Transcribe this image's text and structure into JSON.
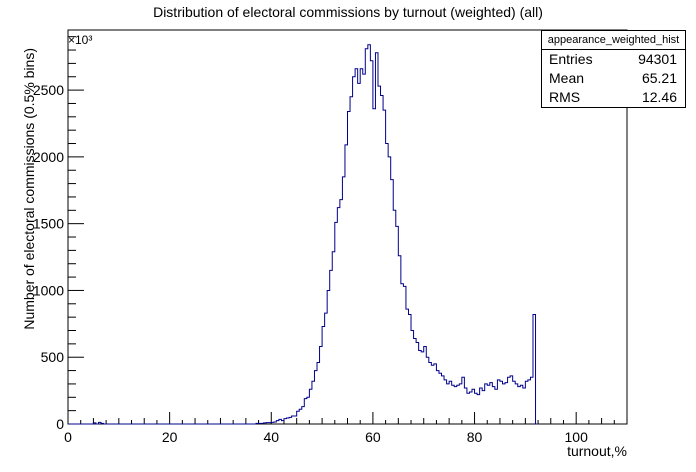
{
  "chart_data": {
    "type": "histogram",
    "title": "Distribution of electoral commissions by turnout (weighted) (all)",
    "xlabel": "turnout,%",
    "ylabel": "Number of electoral commissions (0.5% bins)",
    "y_exponent_label": "×10³",
    "xlim": [
      0,
      110
    ],
    "ylim": [
      0,
      2950
    ],
    "x_ticks": [
      "0",
      "20",
      "40",
      "60",
      "80",
      "100"
    ],
    "y_ticks": [
      "0",
      "500",
      "1000",
      "1500",
      "2000",
      "2500"
    ],
    "bin_width": 0.5,
    "bin_start": 0,
    "counts": [
      0,
      0,
      0,
      0,
      0,
      0,
      0,
      0,
      0,
      0,
      8,
      0,
      12,
      5,
      0,
      0,
      0,
      0,
      0,
      0,
      0,
      0,
      0,
      0,
      0,
      0,
      0,
      0,
      0,
      0,
      0,
      0,
      0,
      0,
      0,
      0,
      0,
      0,
      0,
      0,
      0,
      0,
      0,
      0,
      0,
      0,
      0,
      0,
      0,
      0,
      0,
      0,
      0,
      0,
      0,
      0,
      0,
      0,
      0,
      0,
      0,
      0,
      0,
      0,
      0,
      0,
      0,
      0,
      0,
      0,
      0,
      0,
      0,
      0,
      5,
      5,
      5,
      8,
      10,
      10,
      12,
      15,
      25,
      35,
      25,
      40,
      45,
      50,
      60,
      60,
      95,
      110,
      130,
      190,
      200,
      260,
      320,
      400,
      460,
      580,
      730,
      830,
      1000,
      1150,
      1290,
      1510,
      1620,
      1680,
      1850,
      2090,
      2340,
      2450,
      2600,
      2660,
      2550,
      2660,
      2620,
      2810,
      2840,
      2720,
      2360,
      2780,
      2530,
      2460,
      2350,
      2100,
      2000,
      1830,
      1600,
      1480,
      1260,
      1050,
      1030,
      860,
      820,
      700,
      640,
      610,
      550,
      540,
      580,
      500,
      460,
      440,
      450,
      400,
      380,
      360,
      330,
      300,
      320,
      290,
      280,
      290,
      300,
      350,
      270,
      230,
      240,
      260,
      230,
      220,
      270,
      250,
      300,
      290,
      310,
      280,
      260,
      330,
      320,
      300,
      310,
      350,
      360,
      320,
      300,
      280,
      290,
      270,
      320,
      330,
      350,
      820,
      0
    ],
    "stats": {
      "name": "appearance_weighted_hist",
      "rows": [
        {
          "label": "Entries",
          "value": "94301"
        },
        {
          "label": "Mean",
          "value": "65.21"
        },
        {
          "label": "RMS",
          "value": "12.46"
        }
      ]
    },
    "line_color": "#00008b",
    "grid": false
  }
}
